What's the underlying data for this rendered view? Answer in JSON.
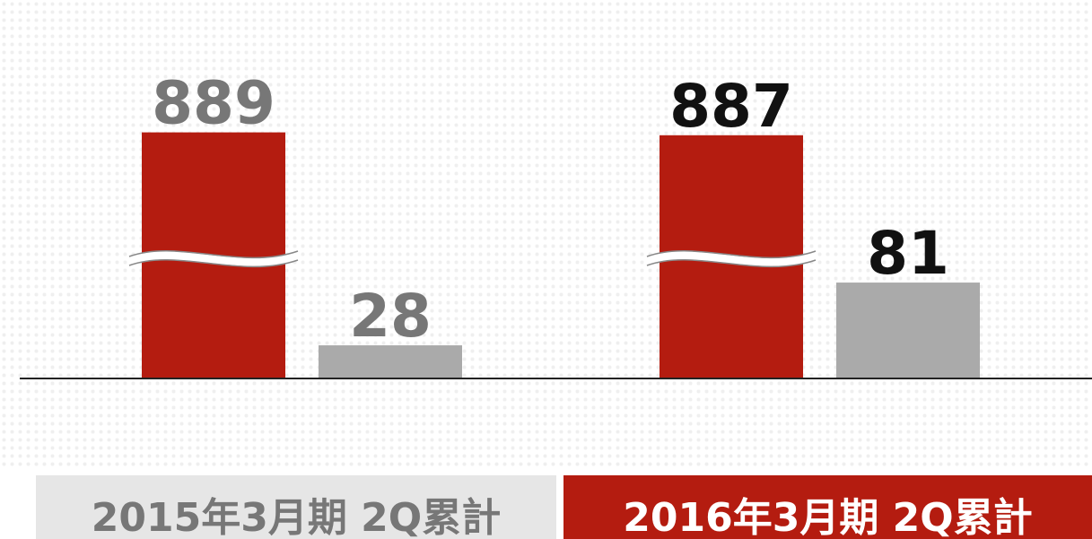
{
  "chart_data": {
    "type": "bar",
    "categories": [
      "2015年3月期 2Q累計",
      "2016年3月期 2Q累計"
    ],
    "series": [
      {
        "color": "#b41c10",
        "values": [
          889,
          887
        ]
      },
      {
        "color": "#aaaaaa",
        "values": [
          28,
          81
        ]
      }
    ],
    "ylim": [
      0,
      900
    ],
    "y_break": [
      100,
      800
    ],
    "label_colors": [
      "#777777",
      "#111111"
    ],
    "category_backgrounds": [
      "#e6e6e6",
      "#b41c10"
    ],
    "category_text_colors": [
      "#777777",
      "#ffffff"
    ]
  }
}
